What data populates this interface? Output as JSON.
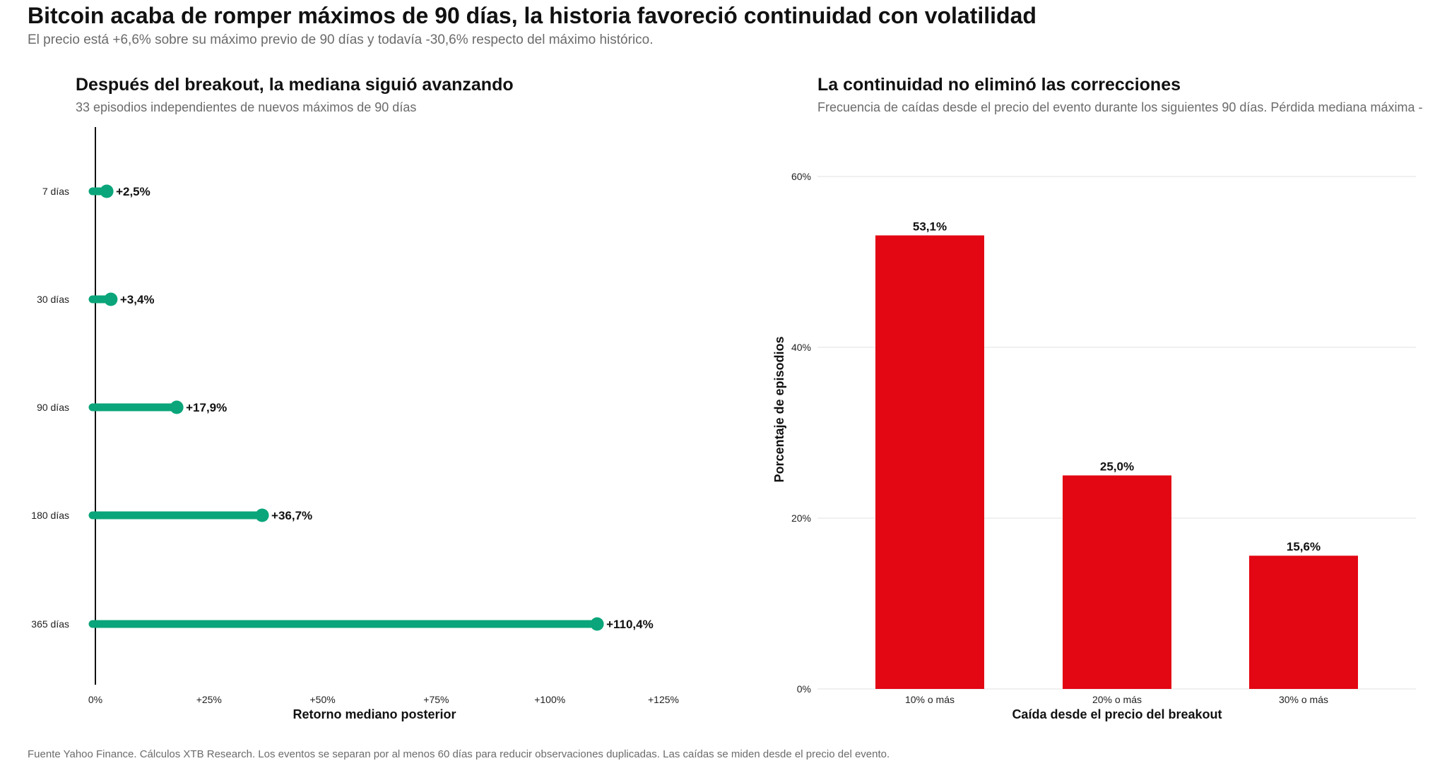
{
  "header": {
    "title": "Bitcoin acaba de romper máximos de 90 días, la historia favoreció continuidad con volatilidad",
    "subtitle": "El precio está +6,6% sobre su máximo previo de 90 días y todavía -30,6% respecto del máximo histórico."
  },
  "footer": "Fuente Yahoo Finance. Cálculos XTB Research. Los eventos se separan por al menos 60 días para reducir observaciones duplicadas. Las caídas se miden desde el precio del evento.",
  "colors": {
    "lollipop": "#0aa57a",
    "bar": "#e30613",
    "grid": "#ebebeb",
    "axis": "#111111"
  },
  "chart_data": [
    {
      "type": "lollipop",
      "title": "Después del breakout, la mediana siguió avanzando",
      "subtitle": "33 episodios independientes de nuevos máximos de 90 días",
      "xlabel": "Retorno mediano posterior",
      "ylabel": "",
      "categories": [
        "7 días",
        "30 días",
        "90 días",
        "180 días",
        "365 días"
      ],
      "values": [
        2.5,
        3.4,
        17.9,
        36.7,
        110.4
      ],
      "labels": [
        "+2,5%",
        "+3,4%",
        "+17,9%",
        "+36,7%",
        "+110,4%"
      ],
      "xlim": [
        0,
        125
      ],
      "xticks": [
        0,
        25,
        50,
        75,
        100,
        125
      ],
      "xtick_labels": [
        "0%",
        "+25%",
        "+50%",
        "+75%",
        "+100%",
        "+125%"
      ],
      "grid": false
    },
    {
      "type": "bar",
      "title": "La continuidad no eliminó las correcciones",
      "subtitle": "Frecuencia de caídas desde el precio del evento durante los siguientes 90 días. Pérdida mediana máxima -",
      "xlabel": "Caída desde el precio del breakout",
      "ylabel": "Porcentaje de episodios",
      "categories": [
        "10% o más",
        "20% o más",
        "30% o más"
      ],
      "values": [
        53.1,
        25.0,
        15.6
      ],
      "labels": [
        "53,1%",
        "25,0%",
        "15,6%"
      ],
      "ylim": [
        0,
        60
      ],
      "yticks": [
        0,
        20,
        40,
        60
      ],
      "ytick_labels": [
        "0%",
        "20%",
        "40%",
        "60%"
      ],
      "grid": true
    }
  ]
}
